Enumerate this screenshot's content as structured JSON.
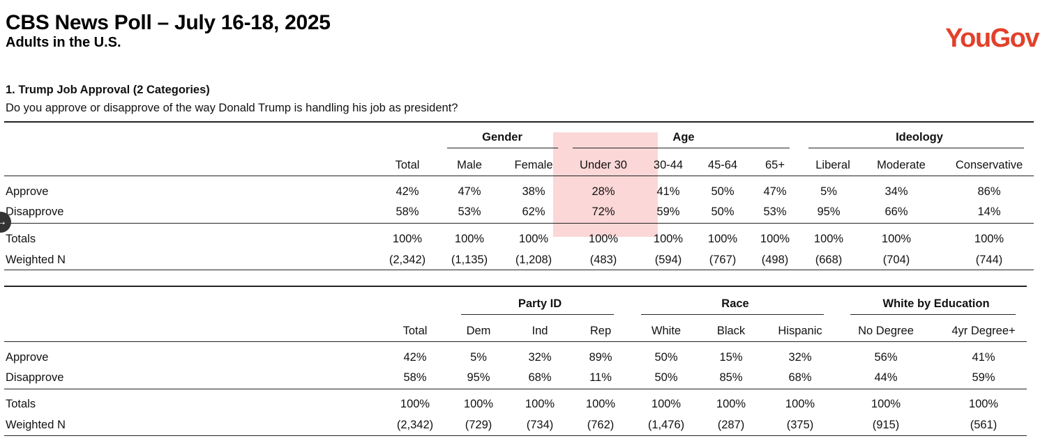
{
  "header": {
    "title": "CBS News Poll – July 16-18, 2025",
    "subtitle": "Adults in the U.S.",
    "logo_text": "YouGov",
    "logo_color": "#e2412b"
  },
  "question": {
    "title": "1. Trump Job Approval (2 Categories)",
    "text": "Do you approve or disapprove of the way Donald Trump is handling his job as president?"
  },
  "table1": {
    "groups": [
      {
        "label": "Gender"
      },
      {
        "label": "Age"
      },
      {
        "label": "Ideology"
      }
    ],
    "columns": [
      "Total",
      "Male",
      "Female",
      "Under 30",
      "30-44",
      "45-64",
      "65+",
      "Liberal",
      "Moderate",
      "Conservative"
    ],
    "rows": [
      {
        "label": "Approve",
        "values": [
          "42%",
          "47%",
          "38%",
          "28%",
          "41%",
          "50%",
          "47%",
          "5%",
          "34%",
          "86%"
        ]
      },
      {
        "label": "Disapprove",
        "values": [
          "58%",
          "53%",
          "62%",
          "72%",
          "59%",
          "50%",
          "53%",
          "95%",
          "66%",
          "14%"
        ]
      },
      {
        "label": "Totals",
        "values": [
          "100%",
          "100%",
          "100%",
          "100%",
          "100%",
          "100%",
          "100%",
          "100%",
          "100%",
          "100%"
        ]
      },
      {
        "label": "Weighted N",
        "values": [
          "(2,342)",
          "(1,135)",
          "(1,208)",
          "(483)",
          "(594)",
          "(767)",
          "(498)",
          "(668)",
          "(704)",
          "(744)"
        ]
      }
    ]
  },
  "table2": {
    "groups": [
      {
        "label": "Party ID"
      },
      {
        "label": "Race"
      },
      {
        "label": "White by Education"
      }
    ],
    "columns": [
      "Total",
      "Dem",
      "Ind",
      "Rep",
      "White",
      "Black",
      "Hispanic",
      "No Degree",
      "4yr Degree+"
    ],
    "rows": [
      {
        "label": "Approve",
        "values": [
          "42%",
          "5%",
          "32%",
          "89%",
          "50%",
          "15%",
          "32%",
          "56%",
          "41%"
        ]
      },
      {
        "label": "Disapprove",
        "values": [
          "58%",
          "95%",
          "68%",
          "11%",
          "50%",
          "85%",
          "68%",
          "44%",
          "59%"
        ]
      },
      {
        "label": "Totals",
        "values": [
          "100%",
          "100%",
          "100%",
          "100%",
          "100%",
          "100%",
          "100%",
          "100%",
          "100%"
        ]
      },
      {
        "label": "Weighted N",
        "values": [
          "(2,342)",
          "(729)",
          "(734)",
          "(762)",
          "(1,476)",
          "(287)",
          "(375)",
          "(915)",
          "(561)"
        ]
      }
    ]
  },
  "highlight_color": "#f7a6a6",
  "side_handle_icon": "arrow-icon"
}
